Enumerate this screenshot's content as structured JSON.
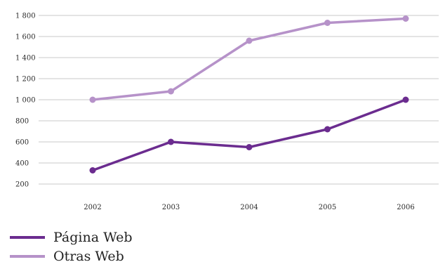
{
  "chart_data": {
    "type": "line",
    "title": "",
    "xlabel": "",
    "ylabel": "",
    "categories": [
      "2002",
      "2003",
      "2004",
      "2005",
      "2006"
    ],
    "y_ticks": [
      "1 800",
      "1 600",
      "1 400",
      "1 200",
      "1 000",
      "800",
      "600",
      "400",
      "200"
    ],
    "ylim": [
      200,
      1800
    ],
    "grid": true,
    "legend_position": "bottom-left",
    "series": [
      {
        "name": "Página Web",
        "color": "#6b2c8f",
        "values": [
          330,
          600,
          550,
          720,
          1000
        ]
      },
      {
        "name": "Otras Web",
        "color": "#b692c9",
        "values": [
          1000,
          1080,
          1560,
          1730,
          1770
        ]
      }
    ]
  }
}
